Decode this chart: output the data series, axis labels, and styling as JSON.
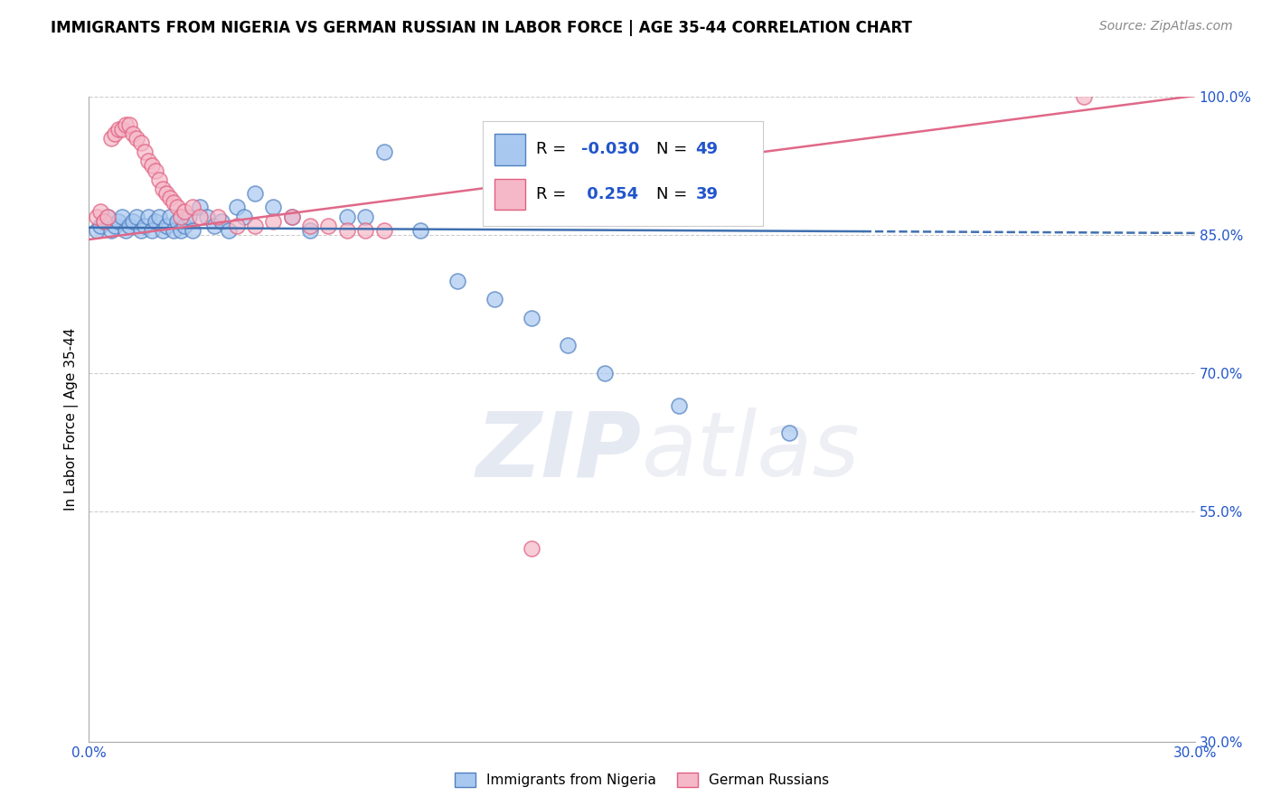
{
  "title": "IMMIGRANTS FROM NIGERIA VS GERMAN RUSSIAN IN LABOR FORCE | AGE 35-44 CORRELATION CHART",
  "source": "Source: ZipAtlas.com",
  "ylabel": "In Labor Force | Age 35-44",
  "xlim": [
    0.0,
    0.3
  ],
  "ylim": [
    0.3,
    1.0
  ],
  "xticks": [
    0.0,
    0.033,
    0.067,
    0.1,
    0.133,
    0.167,
    0.2,
    0.233,
    0.267,
    0.3
  ],
  "xticklabels": [
    "0.0%",
    "",
    "",
    "",
    "",
    "",
    "",
    "",
    "",
    "30.0%"
  ],
  "yticks": [
    0.3,
    0.55,
    0.7,
    0.85,
    1.0
  ],
  "yticklabels": [
    "30.0%",
    "55.0%",
    "70.0%",
    "85.0%",
    "100.0%"
  ],
  "blue_color": "#A8C8F0",
  "pink_color": "#F5B8C8",
  "blue_edge_color": "#5080C0",
  "pink_edge_color": "#E06080",
  "blue_line_color": "#4070B0",
  "pink_line_color": "#E06888",
  "legend_r_blue": "-0.030",
  "legend_n_blue": "49",
  "legend_r_pink": "0.254",
  "legend_n_pink": "39",
  "legend_label_blue": "Immigrants from Nigeria",
  "legend_label_pink": "German Russians",
  "watermark_zip": "ZIP",
  "watermark_atlas": "atlas",
  "nigeria_x": [
    0.002,
    0.003,
    0.004,
    0.005,
    0.006,
    0.007,
    0.008,
    0.009,
    0.01,
    0.011,
    0.012,
    0.013,
    0.014,
    0.015,
    0.016,
    0.017,
    0.018,
    0.019,
    0.02,
    0.021,
    0.022,
    0.023,
    0.024,
    0.025,
    0.026,
    0.027,
    0.028,
    0.03,
    0.032,
    0.034,
    0.036,
    0.038,
    0.04,
    0.042,
    0.045,
    0.05,
    0.055,
    0.06,
    0.07,
    0.075,
    0.08,
    0.09,
    0.1,
    0.11,
    0.12,
    0.13,
    0.14,
    0.16,
    0.19
  ],
  "nigeria_y": [
    0.855,
    0.86,
    0.865,
    0.87,
    0.855,
    0.86,
    0.865,
    0.87,
    0.855,
    0.86,
    0.865,
    0.87,
    0.855,
    0.86,
    0.87,
    0.855,
    0.865,
    0.87,
    0.855,
    0.86,
    0.87,
    0.855,
    0.865,
    0.855,
    0.86,
    0.87,
    0.855,
    0.88,
    0.87,
    0.86,
    0.865,
    0.855,
    0.88,
    0.87,
    0.895,
    0.88,
    0.87,
    0.855,
    0.87,
    0.87,
    0.94,
    0.855,
    0.8,
    0.78,
    0.76,
    0.73,
    0.7,
    0.665,
    0.635
  ],
  "german_x": [
    0.002,
    0.003,
    0.004,
    0.005,
    0.006,
    0.007,
    0.008,
    0.009,
    0.01,
    0.011,
    0.012,
    0.013,
    0.014,
    0.015,
    0.016,
    0.017,
    0.018,
    0.019,
    0.02,
    0.021,
    0.022,
    0.023,
    0.024,
    0.025,
    0.026,
    0.028,
    0.03,
    0.035,
    0.04,
    0.045,
    0.05,
    0.055,
    0.06,
    0.065,
    0.07,
    0.075,
    0.08,
    0.12,
    0.27
  ],
  "german_y": [
    0.87,
    0.875,
    0.865,
    0.87,
    0.955,
    0.96,
    0.965,
    0.965,
    0.97,
    0.97,
    0.96,
    0.955,
    0.95,
    0.94,
    0.93,
    0.925,
    0.92,
    0.91,
    0.9,
    0.895,
    0.89,
    0.885,
    0.88,
    0.87,
    0.875,
    0.88,
    0.87,
    0.87,
    0.86,
    0.86,
    0.865,
    0.87,
    0.86,
    0.86,
    0.855,
    0.855,
    0.855,
    0.51,
    1.0
  ]
}
